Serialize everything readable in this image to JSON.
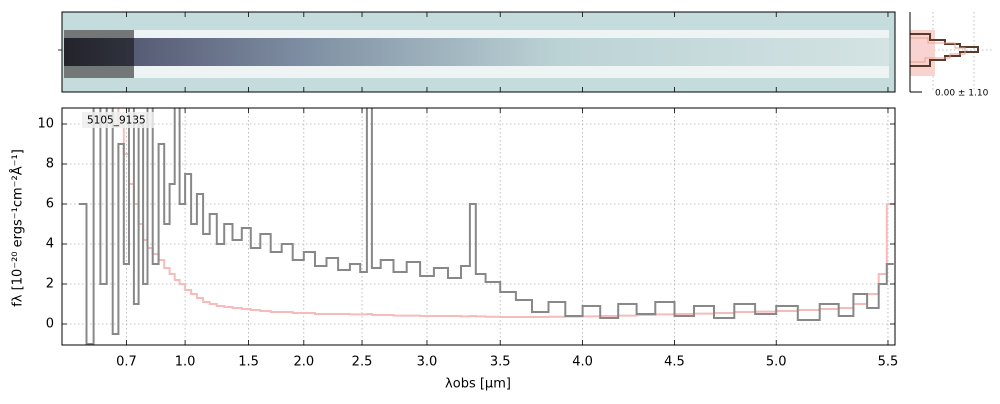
{
  "chart_data": {
    "type": "step",
    "object_label": "5105_9135",
    "profile_label": "0.00 ± 1.10",
    "xlabel": "λobs [μm]",
    "ylabel": "fλ [10⁻²⁰ ergs⁻¹cm⁻²Å⁻¹]",
    "xlim": [
      0.51,
      5.53
    ],
    "ylim": [
      -1.05,
      10.8
    ],
    "xticks": [
      0.7,
      {
        "value": 1,
        "label": "1.0"
      },
      1.5,
      {
        "value": 2,
        "label": "2.0"
      },
      2.5,
      {
        "value": 3,
        "label": "3.0"
      },
      3.5,
      {
        "value": 4,
        "label": "4.0"
      },
      4.5,
      {
        "value": 5,
        "label": "5.0"
      },
      5.5
    ],
    "yticks": [
      0,
      2,
      4,
      6,
      8,
      10
    ],
    "grid": true,
    "x": [
      0.56,
      0.58,
      0.6,
      0.62,
      0.64,
      0.66,
      0.68,
      0.7,
      0.72,
      0.74,
      0.76,
      0.78,
      0.8,
      0.83,
      0.86,
      0.89,
      0.92,
      0.95,
      0.98,
      1.02,
      1.06,
      1.1,
      1.15,
      1.2,
      1.26,
      1.32,
      1.4,
      1.48,
      1.56,
      1.65,
      1.75,
      1.85,
      1.95,
      2.05,
      2.15,
      2.25,
      2.35,
      2.45,
      2.52,
      2.56,
      2.6,
      2.7,
      2.8,
      2.9,
      3.0,
      3.1,
      3.2,
      3.28,
      3.32,
      3.36,
      3.45,
      3.55,
      3.65,
      3.75,
      3.85,
      3.95,
      4.05,
      4.15,
      4.25,
      4.35,
      4.45,
      4.55,
      4.65,
      4.75,
      4.85,
      4.95,
      5.05,
      5.15,
      5.25,
      5.32,
      5.38,
      5.44,
      5.48,
      5.51
    ],
    "series": [
      {
        "color": "#888888",
        "values": [
          6,
          -1,
          11,
          2,
          11,
          -0.5,
          9,
          3,
          11,
          1,
          10,
          2,
          11,
          3,
          9,
          5,
          7,
          11,
          6,
          7.5,
          5,
          6.5,
          4.5,
          5.5,
          4,
          5,
          4.2,
          4.8,
          3.8,
          4.5,
          3.6,
          4,
          3.2,
          3.6,
          2.9,
          3.3,
          2.7,
          3,
          2.6,
          11,
          2.8,
          3.2,
          2.6,
          3.1,
          2.4,
          2.8,
          2.3,
          2.9,
          6,
          2.5,
          2.1,
          1.6,
          1.2,
          0.6,
          1.1,
          0.4,
          0.9,
          0.3,
          1,
          0.5,
          1.1,
          0.4,
          0.9,
          0.3,
          1,
          0.5,
          0.9,
          0.2,
          1,
          0.4,
          1.5,
          0.8,
          2,
          3
        ]
      },
      {
        "color": "#f7bcba",
        "values": [
          11,
          11,
          11,
          11,
          11,
          11,
          10,
          8.5,
          7,
          6,
          5,
          4.2,
          3.8,
          3.5,
          3.2,
          2.8,
          2.5,
          2.2,
          2,
          1.7,
          1.5,
          1.3,
          1.1,
          1,
          0.9,
          0.85,
          0.8,
          0.75,
          0.7,
          0.65,
          0.6,
          0.6,
          0.55,
          0.55,
          0.5,
          0.5,
          0.5,
          0.48,
          0.48,
          0.5,
          0.45,
          0.45,
          0.42,
          0.42,
          0.4,
          0.4,
          0.4,
          0.38,
          0.4,
          0.38,
          0.36,
          0.35,
          0.35,
          0.35,
          0.36,
          0.37,
          0.38,
          0.4,
          0.42,
          0.45,
          0.48,
          0.5,
          0.52,
          0.55,
          0.6,
          0.62,
          0.65,
          0.7,
          0.75,
          0.8,
          1,
          1.5,
          2.5,
          6
        ]
      }
    ]
  }
}
